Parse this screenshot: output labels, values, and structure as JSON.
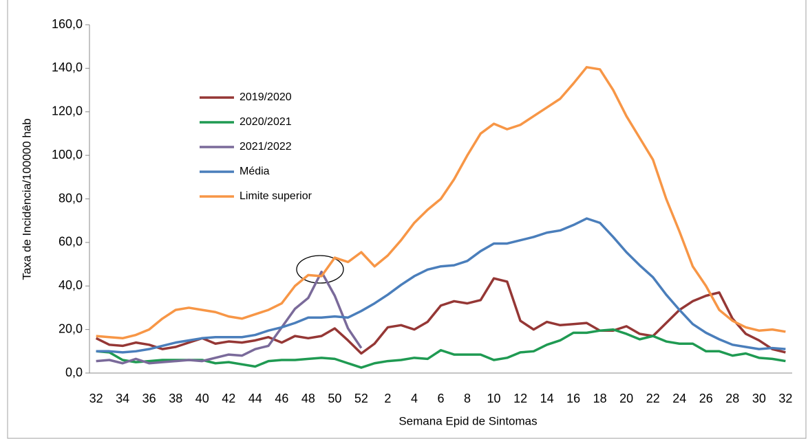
{
  "chart_data": {
    "type": "line",
    "y_label": "Taxa de Incidência/100000 hab",
    "x_label": "Semana Epid de Sintomas",
    "categories": [
      "32",
      null,
      "34",
      null,
      "36",
      null,
      "38",
      null,
      "40",
      null,
      "42",
      null,
      "44",
      null,
      "46",
      null,
      "48",
      null,
      "50",
      null,
      "52",
      null,
      "2",
      null,
      "4",
      null,
      "6",
      null,
      "8",
      null,
      "10",
      null,
      "12",
      null,
      "14",
      null,
      "16",
      null,
      "18",
      null,
      "20",
      null,
      "22",
      null,
      "24",
      null,
      "26",
      null,
      "28",
      null,
      "30",
      null,
      "32"
    ],
    "series": [
      {
        "name": "2019/2020",
        "color": "#953735",
        "values": [
          16,
          13,
          12.5,
          14,
          13,
          11,
          12,
          14,
          16,
          13.5,
          14.5,
          14,
          15,
          16.5,
          14,
          17,
          16,
          17,
          20.5,
          15,
          9,
          13.5,
          21,
          22,
          20,
          23.5,
          31,
          33,
          32,
          33.5,
          43.5,
          42,
          24,
          20,
          23.5,
          22,
          22.5,
          23,
          19.5,
          19.5,
          21.5,
          18,
          17,
          23,
          29,
          33,
          35.5,
          37,
          25,
          18,
          15,
          11,
          9.5
        ]
      },
      {
        "name": "2020/2021",
        "color": "#1f9a52",
        "values": [
          10,
          9.5,
          6,
          5,
          5.5,
          6,
          6,
          6,
          6,
          4.5,
          5,
          4,
          3,
          5.5,
          6,
          6,
          6.5,
          7,
          6.5,
          4.5,
          2.5,
          4.5,
          5.5,
          6,
          7,
          6.5,
          10.5,
          8.5,
          8.5,
          8.5,
          6,
          7,
          9.5,
          10,
          13,
          15,
          18.5,
          18.5,
          19.5,
          20,
          18,
          15.5,
          17,
          14.5,
          13.5,
          13.5,
          10,
          10,
          8,
          9,
          7,
          6.5,
          5.5
        ]
      },
      {
        "name": "2021/2022",
        "color": "#7a6a9a",
        "values": [
          5.5,
          6,
          4.5,
          6.5,
          4.5,
          5,
          5.5,
          6,
          5.5,
          7,
          8.5,
          8,
          11,
          12.5,
          21,
          29.5,
          34.5,
          46.5,
          35.5,
          20.5,
          11.5,
          null,
          null,
          null,
          null,
          null,
          null,
          null,
          null,
          null,
          null,
          null,
          null,
          null,
          null,
          null,
          null,
          null,
          null,
          null,
          null,
          null,
          null,
          null,
          null,
          null,
          null,
          null,
          null,
          null,
          null,
          null,
          null
        ]
      },
      {
        "name": "Média",
        "color": "#4a7ebb",
        "values": [
          10,
          10,
          9.5,
          10,
          11,
          12.5,
          14,
          15,
          16,
          16.5,
          16.5,
          16.5,
          17.5,
          19.5,
          21,
          23,
          25.5,
          25.5,
          26,
          25.5,
          28.5,
          32,
          36,
          40.5,
          44.5,
          47.5,
          49,
          49.5,
          51.5,
          56,
          59.5,
          59.5,
          61,
          62.5,
          64.5,
          65.5,
          68,
          71,
          69,
          62.5,
          55.5,
          49.5,
          44,
          36,
          29,
          22.5,
          18.5,
          15.5,
          13,
          12,
          11,
          11.5,
          11
        ]
      },
      {
        "name": "Limite superior",
        "color": "#f79646",
        "values": [
          17,
          16.5,
          16,
          17.5,
          20,
          25,
          29,
          30,
          29,
          28,
          26,
          25,
          27,
          29,
          32,
          40,
          45,
          44.5,
          53,
          51,
          55.5,
          49,
          54,
          61,
          69,
          75,
          80,
          89,
          100,
          110,
          114.5,
          112,
          114,
          118,
          122,
          126,
          133,
          140.5,
          139.5,
          130,
          118,
          108,
          98,
          80,
          65,
          49,
          40,
          29,
          24,
          21,
          19.5,
          20,
          19
        ]
      }
    ],
    "ylim": [
      0,
      160
    ],
    "yticks": [
      {
        "value": 0,
        "label": "0,0"
      },
      {
        "value": 20,
        "label": "20,0"
      },
      {
        "value": 40,
        "label": "40,0"
      },
      {
        "value": 60,
        "label": "60,0"
      },
      {
        "value": 80,
        "label": "80,0"
      },
      {
        "value": 100,
        "label": "100,0"
      },
      {
        "value": 120,
        "label": "120,0"
      },
      {
        "value": 140,
        "label": "140,0"
      },
      {
        "value": 160,
        "label": "160,0"
      }
    ],
    "grid": false
  }
}
